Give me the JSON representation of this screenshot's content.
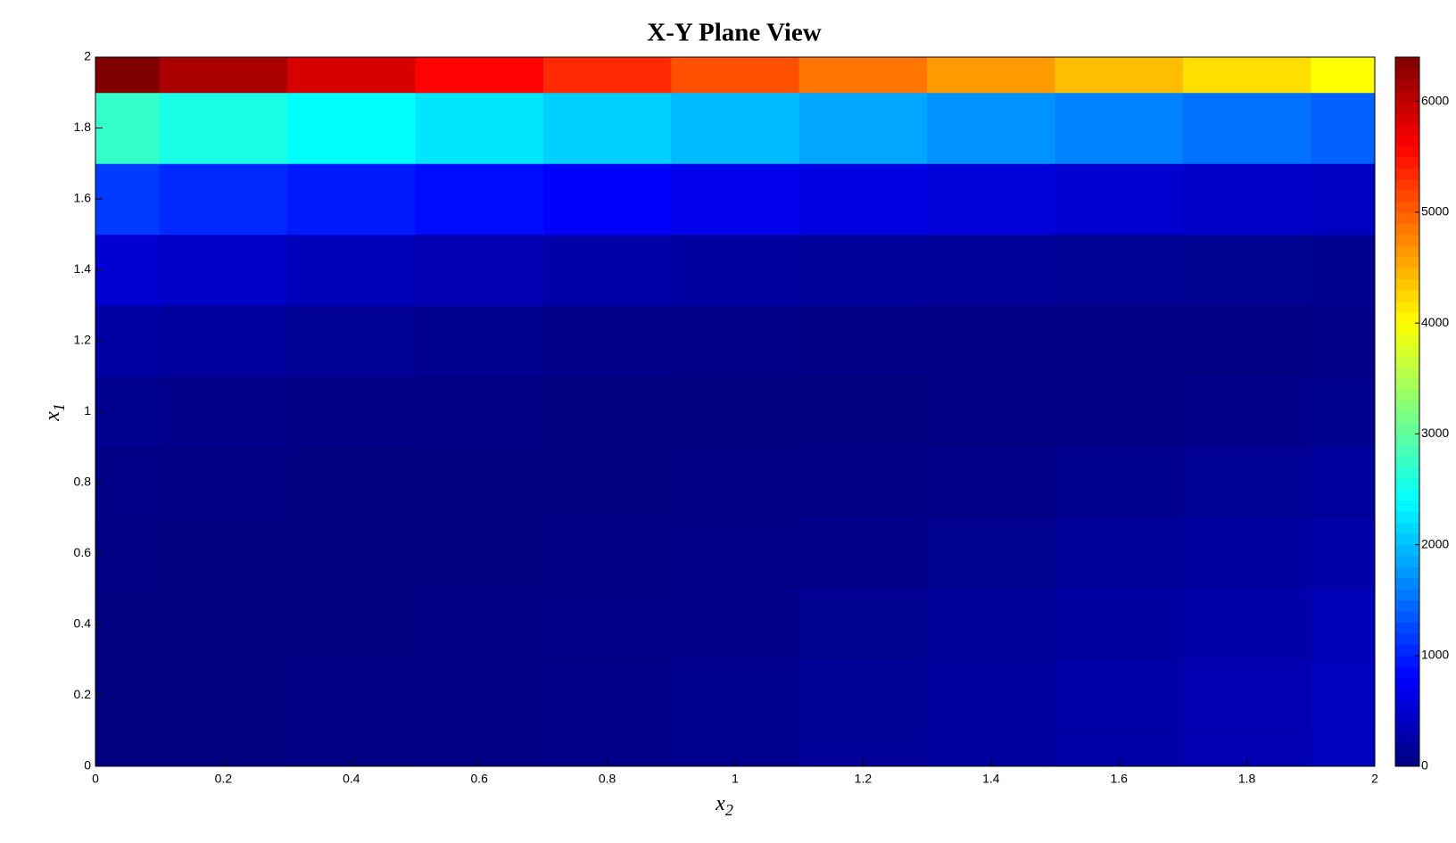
{
  "chart_data": {
    "type": "heatmap",
    "title": "X-Y Plane View",
    "x_label": "x",
    "x_label_subscript": "2",
    "y_label": "x",
    "y_label_subscript": "1",
    "x": [
      0,
      0.2,
      0.4,
      0.6,
      0.8,
      1,
      1.2,
      1.4,
      1.6,
      1.8,
      2
    ],
    "y": [
      0,
      0.2,
      0.4,
      0.6,
      0.8,
      1,
      1.2,
      1.4,
      1.6,
      1.8,
      2
    ],
    "z": [
      [
        0,
        4,
        16,
        36,
        64,
        100,
        144,
        196,
        256,
        324,
        400
      ],
      [
        0,
        3,
        13,
        31,
        57,
        92,
        134,
        185,
        243,
        309,
        384
      ],
      [
        3,
        0,
        6,
        20,
        41,
        71,
        109,
        155,
        210,
        274,
        346
      ],
      [
        13,
        3,
        0,
        6,
        19,
        41,
        71,
        108,
        154,
        207,
        269
      ],
      [
        41,
        20,
        6,
        0,
        3,
        13,
        31,
        58,
        92,
        135,
        185
      ],
      [
        100,
        64,
        36,
        16,
        4,
        0,
        4,
        16,
        36,
        64,
        100
      ],
      [
        236,
        182,
        136,
        98,
        67,
        44,
        31,
        24,
        26,
        35,
        53
      ],
      [
        520,
        443,
        372,
        311,
        257,
        211,
        174,
        143,
        122,
        108,
        102
      ],
      [
        1170,
        1059,
        956,
        860,
        774,
        694,
        623,
        560,
        504,
        457,
        417
      ],
      [
        2724,
        2557,
        2398,
        2246,
        2105,
        1968,
        1839,
        1720,
        1608,
        1504,
        1410
      ],
      [
        6400,
        6124,
        5856,
        5596,
        5344,
        5100,
        4864,
        4636,
        4416,
        4204,
        4000
      ]
    ],
    "colormap": "jet",
    "xlim": [
      0,
      2
    ],
    "ylim": [
      0,
      2
    ],
    "xticks": [
      0,
      0.2,
      0.4,
      0.6,
      0.8,
      1,
      1.2,
      1.4,
      1.6,
      1.8,
      2
    ],
    "yticks": [
      0,
      0.2,
      0.4,
      0.6,
      0.8,
      1,
      1.2,
      1.4,
      1.6,
      1.8,
      2
    ],
    "clim": [
      0,
      6400
    ],
    "cticks": [
      0,
      1000,
      2000,
      3000,
      4000,
      5000,
      6000
    ]
  }
}
